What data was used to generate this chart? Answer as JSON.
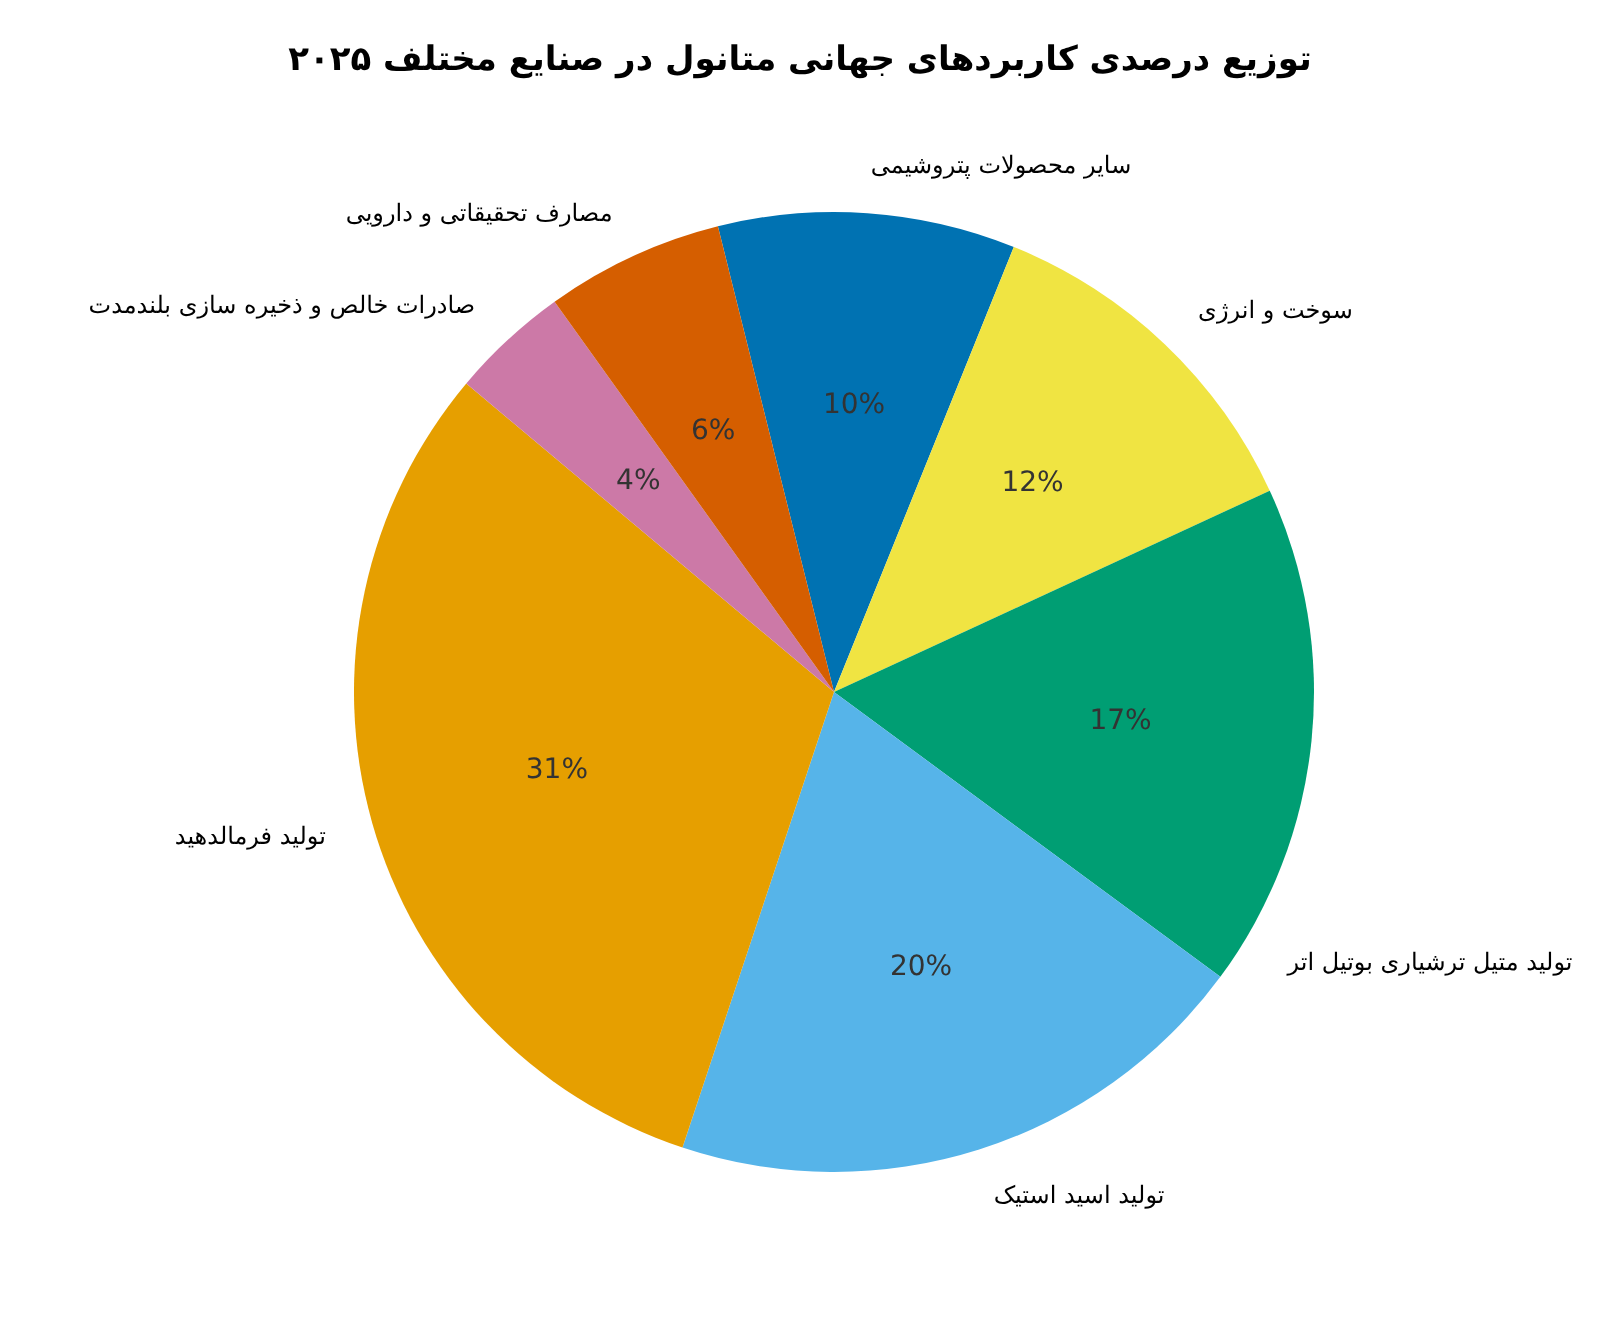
{
  "chart_data": {
    "type": "pie",
    "title": "توزیع درصدی کاربردهای جهانی متانول در صنایع مختلف ۲۰۲۵",
    "categories": [
      "سایر محصولات پتروشیمی",
      "سوخت و انرژی",
      "تولید متیل ترشیاری بوتیل اتر",
      "تولید اسید استیک",
      "تولید فرمالدهید",
      "صادرات خالص و ذخیره سازی بلندمدت",
      "مصارف تحقیقاتی و دارویی"
    ],
    "values": [
      10,
      12,
      17,
      20,
      31,
      4,
      6
    ],
    "colors": [
      "#0072b2",
      "#f0e442",
      "#009e73",
      "#56b4e9",
      "#e69f00",
      "#cc79a7",
      "#d55e00"
    ],
    "value_labels": [
      "10%",
      "12%",
      "17%",
      "20%",
      "31%",
      "4%",
      "6%"
    ]
  }
}
